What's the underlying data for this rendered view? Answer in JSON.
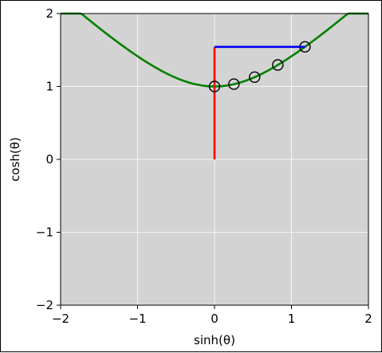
{
  "chart_data": {
    "type": "line",
    "title": "",
    "xlabel": "sinh(θ)",
    "ylabel": "cosh(θ)",
    "xlim": [
      -2,
      2
    ],
    "ylim": [
      -2,
      2
    ],
    "grid": true,
    "background_color": "#d3d3d3",
    "x_ticks": [
      -2,
      -1,
      0,
      1,
      2
    ],
    "y_ticks": [
      -2,
      -1,
      0,
      1,
      2
    ],
    "x_tick_labels": [
      "−2",
      "−1",
      "0",
      "1",
      "2"
    ],
    "y_tick_labels": [
      "−2",
      "−1",
      "0",
      "1",
      "2"
    ],
    "series": [
      {
        "kind": "curve",
        "description": "hyperbola cosh vs sinh",
        "color": "#008000",
        "function": "y = sqrt(1 + x^2)",
        "x_range": [
          -2,
          2
        ]
      },
      {
        "kind": "segment",
        "color": "#ff0000",
        "points": [
          [
            0,
            0
          ],
          [
            0,
            1.543
          ]
        ]
      },
      {
        "kind": "segment",
        "color": "#0000ff",
        "points": [
          [
            0,
            1.543
          ],
          [
            1.175,
            1.543
          ]
        ]
      },
      {
        "kind": "markers",
        "marker": "open-circle",
        "color": "#000000",
        "points": [
          [
            0.0,
            1.0
          ],
          [
            0.252,
            1.032
          ],
          [
            0.521,
            1.128
          ],
          [
            0.822,
            1.295
          ],
          [
            1.175,
            1.543
          ]
        ]
      }
    ]
  }
}
